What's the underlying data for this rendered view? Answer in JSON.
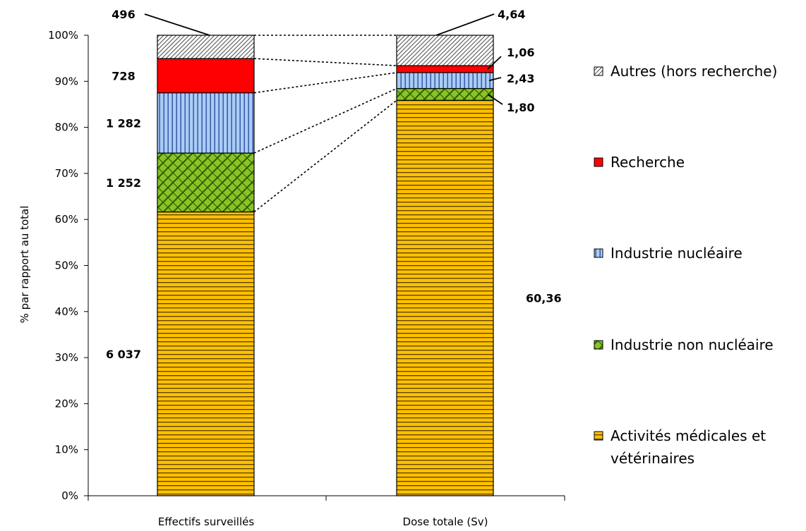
{
  "chart_data": {
    "type": "bar",
    "stacked": true,
    "normalized": true,
    "ylabel": "% par rapport au total",
    "ylim": [
      0,
      100
    ],
    "yticks": [
      "0%",
      "10%",
      "20%",
      "30%",
      "40%",
      "50%",
      "60%",
      "70%",
      "80%",
      "90%",
      "100%"
    ],
    "categories": [
      "Effectifs surveillés",
      "Dose totale (Sv)"
    ],
    "series": [
      {
        "name": "Activités médicales et vétérinaires",
        "values": [
          6037,
          60.36
        ],
        "labels": [
          "6 037",
          "60,36"
        ],
        "color": "#ffc000"
      },
      {
        "name": "Industrie non nucléaire",
        "values": [
          1252,
          1.8
        ],
        "labels": [
          "1 252",
          "1,80"
        ],
        "color": "#7fbf1f"
      },
      {
        "name": "Industrie nucléaire",
        "values": [
          1282,
          2.43
        ],
        "labels": [
          "1 282",
          "2,43"
        ],
        "color": "#a9cdf5"
      },
      {
        "name": "Recherche",
        "values": [
          728,
          1.06
        ],
        "labels": [
          "728",
          "1,06"
        ],
        "color": "#ff0000"
      },
      {
        "name": "Autres (hors recherche)",
        "values": [
          496,
          4.64
        ],
        "labels": [
          "496",
          "4,64"
        ],
        "color": "#ffffff"
      }
    ],
    "legend_position": "right",
    "grid": false
  }
}
